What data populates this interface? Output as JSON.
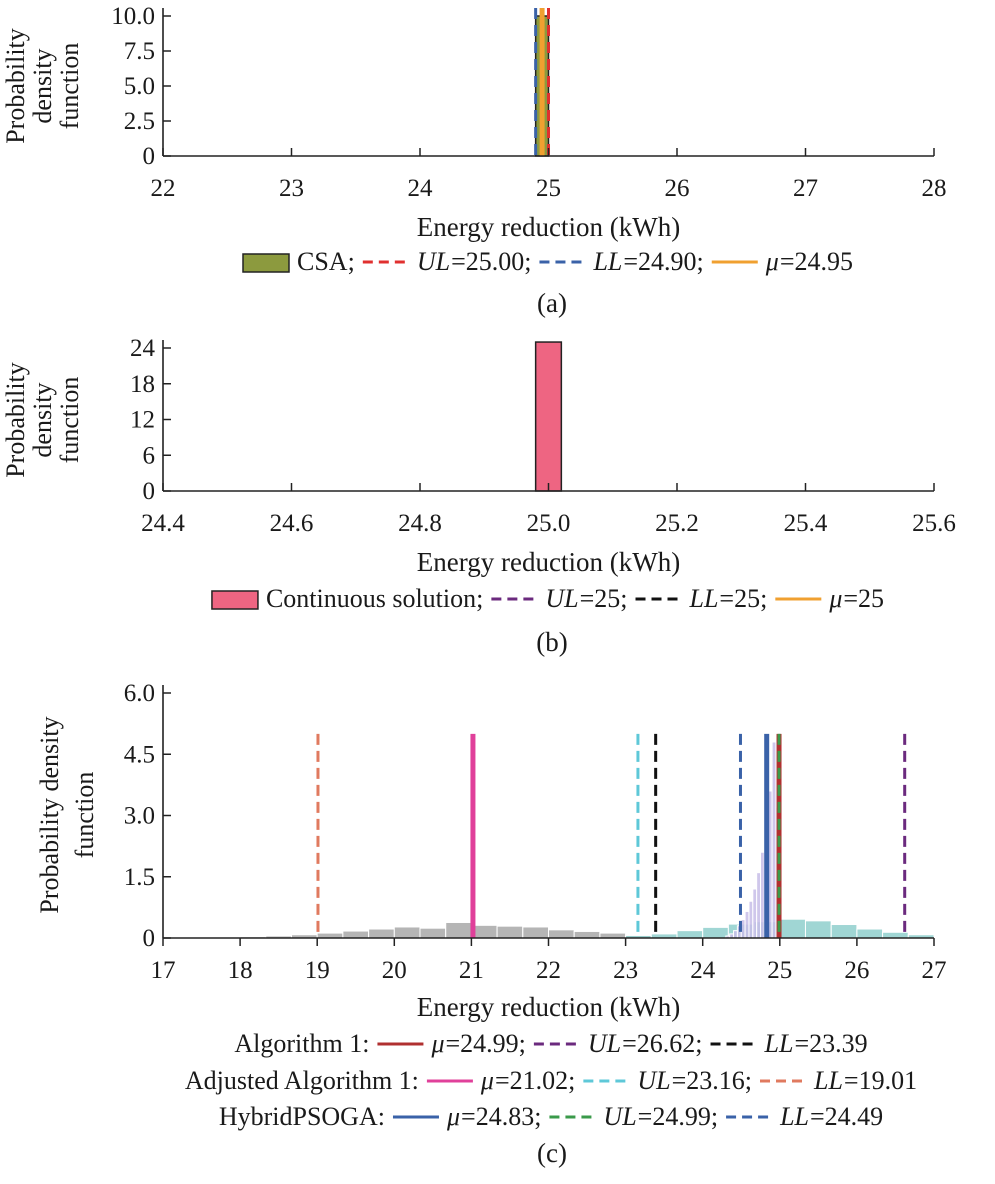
{
  "chart_data": [
    {
      "type": "histogram",
      "panel_label": "(a)",
      "ylabel": [
        "Probability",
        "density",
        "function"
      ],
      "xlabel": "Energy reduction (kWh)",
      "xlim": [
        22,
        28
      ],
      "ylim": [
        0,
        10
      ],
      "xticks": [
        "22",
        "23",
        "24",
        "25",
        "26",
        "27",
        "28"
      ],
      "yticks": [
        "0",
        "2.5",
        "5.0",
        "7.5",
        "10.0"
      ],
      "bars": [
        {
          "x0": 24.9,
          "x1": 25.0,
          "density": 10.0,
          "color": "#8c9a3e"
        }
      ],
      "vlines": [
        {
          "x": 25.0,
          "style": "dashed",
          "color": "#e0302f"
        },
        {
          "x": 24.9,
          "style": "dashed",
          "color": "#3a62a8"
        },
        {
          "x": 24.95,
          "style": "solid",
          "color": "#f0a030"
        }
      ],
      "legend": [
        {
          "kind": "patch",
          "color": "#8c9a3e",
          "text": "CSA;"
        },
        {
          "kind": "dashed",
          "color": "#e0302f",
          "ital": "UL",
          "text": "=25.00;"
        },
        {
          "kind": "dashed",
          "color": "#3a62a8",
          "ital": "LL",
          "text": "=24.90;"
        },
        {
          "kind": "solid",
          "color": "#f0a030",
          "ital": "μ",
          "text": "=24.95"
        }
      ]
    },
    {
      "type": "histogram",
      "panel_label": "(b)",
      "ylabel": [
        "Probability",
        "density",
        "function"
      ],
      "xlabel": "Energy reduction (kWh)",
      "xlim": [
        24.4,
        25.6
      ],
      "ylim": [
        0,
        24
      ],
      "xticks": [
        "24.4",
        "24.6",
        "24.8",
        "25.0",
        "25.2",
        "25.4",
        "25.6"
      ],
      "yticks": [
        "0",
        "6",
        "12",
        "18",
        "24"
      ],
      "bars": [
        {
          "x0": 24.98,
          "x1": 25.02,
          "density": 25.0,
          "color": "#ee6582"
        }
      ],
      "vlines": [],
      "legend": [
        {
          "kind": "patch",
          "color": "#ee6582",
          "text": "Continuous solution;"
        },
        {
          "kind": "dashed",
          "color": "#6b2a7e",
          "ital": "UL",
          "text": "=25;"
        },
        {
          "kind": "dashed",
          "color": "#111111",
          "ital": "LL",
          "text": "=25;"
        },
        {
          "kind": "solid",
          "color": "#f0a030",
          "ital": "μ",
          "text": "=25"
        }
      ]
    },
    {
      "type": "histogram",
      "panel_label": "(c)",
      "ylabel": [
        "Probability density",
        "function"
      ],
      "xlabel": "Energy reduction (kWh)",
      "xlim": [
        17,
        27
      ],
      "ylim": [
        0,
        6
      ],
      "xticks": [
        "17",
        "18",
        "19",
        "20",
        "21",
        "22",
        "23",
        "24",
        "25",
        "26",
        "27"
      ],
      "yticks": [
        "0",
        "1.5",
        "3.0",
        "4.5",
        "6.0"
      ],
      "series": [
        {
          "name": "Adjusted Algorithm 1",
          "color": "#a8a8a8",
          "bin_width": 0.333,
          "x0": [
            18.0,
            18.333,
            18.667,
            19.0,
            19.333,
            19.667,
            20.0,
            20.333,
            20.667,
            21.0,
            21.333,
            21.667,
            22.0,
            22.333,
            22.667,
            23.0,
            23.333
          ],
          "density": [
            0.03,
            0.05,
            0.08,
            0.12,
            0.17,
            0.22,
            0.27,
            0.24,
            0.38,
            0.31,
            0.29,
            0.27,
            0.2,
            0.16,
            0.12,
            0.08,
            0.04
          ]
        },
        {
          "name": "Algorithm 1",
          "color": "#8fcfcd",
          "bin_width": 0.333,
          "x0": [
            23.0,
            23.333,
            23.667,
            24.0,
            24.333,
            24.667,
            25.0,
            25.333,
            25.667,
            26.0,
            26.333,
            26.667
          ],
          "density": [
            0.06,
            0.1,
            0.18,
            0.26,
            0.34,
            0.4,
            0.46,
            0.42,
            0.33,
            0.22,
            0.14,
            0.08
          ]
        },
        {
          "name": "HybridPSOGA",
          "color": "#c7bde8",
          "bin_width": 0.05,
          "x0": [
            24.3,
            24.35,
            24.4,
            24.45,
            24.5,
            24.55,
            24.6,
            24.65,
            24.7,
            24.75,
            24.8,
            24.85,
            24.9,
            24.95
          ],
          "density": [
            0.05,
            0.1,
            0.18,
            0.3,
            0.45,
            0.65,
            0.9,
            1.2,
            1.6,
            2.1,
            2.8,
            3.6,
            4.8,
            3.2
          ]
        }
      ],
      "vlines": [
        {
          "x": 24.99,
          "style": "solid",
          "color": "#b03030",
          "ymax": 5.0
        },
        {
          "x": 26.62,
          "style": "dashed",
          "color": "#6b2a7e",
          "ymax": 5.0
        },
        {
          "x": 23.39,
          "style": "dashed",
          "color": "#111111",
          "ymax": 5.0
        },
        {
          "x": 21.02,
          "style": "solid",
          "color": "#e0409a",
          "ymax": 5.0
        },
        {
          "x": 23.16,
          "style": "dashed",
          "color": "#5ec8d8",
          "ymax": 5.0
        },
        {
          "x": 19.01,
          "style": "dashed",
          "color": "#e07a5f",
          "ymax": 5.0
        },
        {
          "x": 24.83,
          "style": "solid",
          "color": "#3a62a8",
          "ymax": 5.0
        },
        {
          "x": 24.99,
          "style": "dashed",
          "color": "#3a9a4a",
          "ymax": 5.0
        },
        {
          "x": 24.49,
          "style": "dashed",
          "color": "#3a62a8",
          "ymax": 5.0
        }
      ],
      "legend_rows": [
        {
          "prefix": "Algorithm 1:",
          "items": [
            {
              "kind": "solid",
              "color": "#b03030",
              "ital": "μ",
              "text": "=24.99;"
            },
            {
              "kind": "dashed",
              "color": "#6b2a7e",
              "ital": "UL",
              "text": "=26.62;"
            },
            {
              "kind": "dashed",
              "color": "#111111",
              "ital": "LL",
              "text": "=23.39"
            }
          ]
        },
        {
          "prefix": "Adjusted Algorithm 1:",
          "items": [
            {
              "kind": "solid",
              "color": "#e0409a",
              "ital": "μ",
              "text": "=21.02;"
            },
            {
              "kind": "dashed",
              "color": "#5ec8d8",
              "ital": "UL",
              "text": "=23.16;"
            },
            {
              "kind": "dashed",
              "color": "#e07a5f",
              "ital": "LL",
              "text": "=19.01"
            }
          ]
        },
        {
          "prefix": "HybridPSOGA:",
          "items": [
            {
              "kind": "solid",
              "color": "#3a62a8",
              "ital": "μ",
              "text": "=24.83;"
            },
            {
              "kind": "dashed",
              "color": "#3a9a4a",
              "ital": "UL",
              "text": "=24.99;"
            },
            {
              "kind": "dashed",
              "color": "#3a62a8",
              "ital": "LL",
              "text": "=24.49"
            }
          ]
        }
      ]
    }
  ]
}
